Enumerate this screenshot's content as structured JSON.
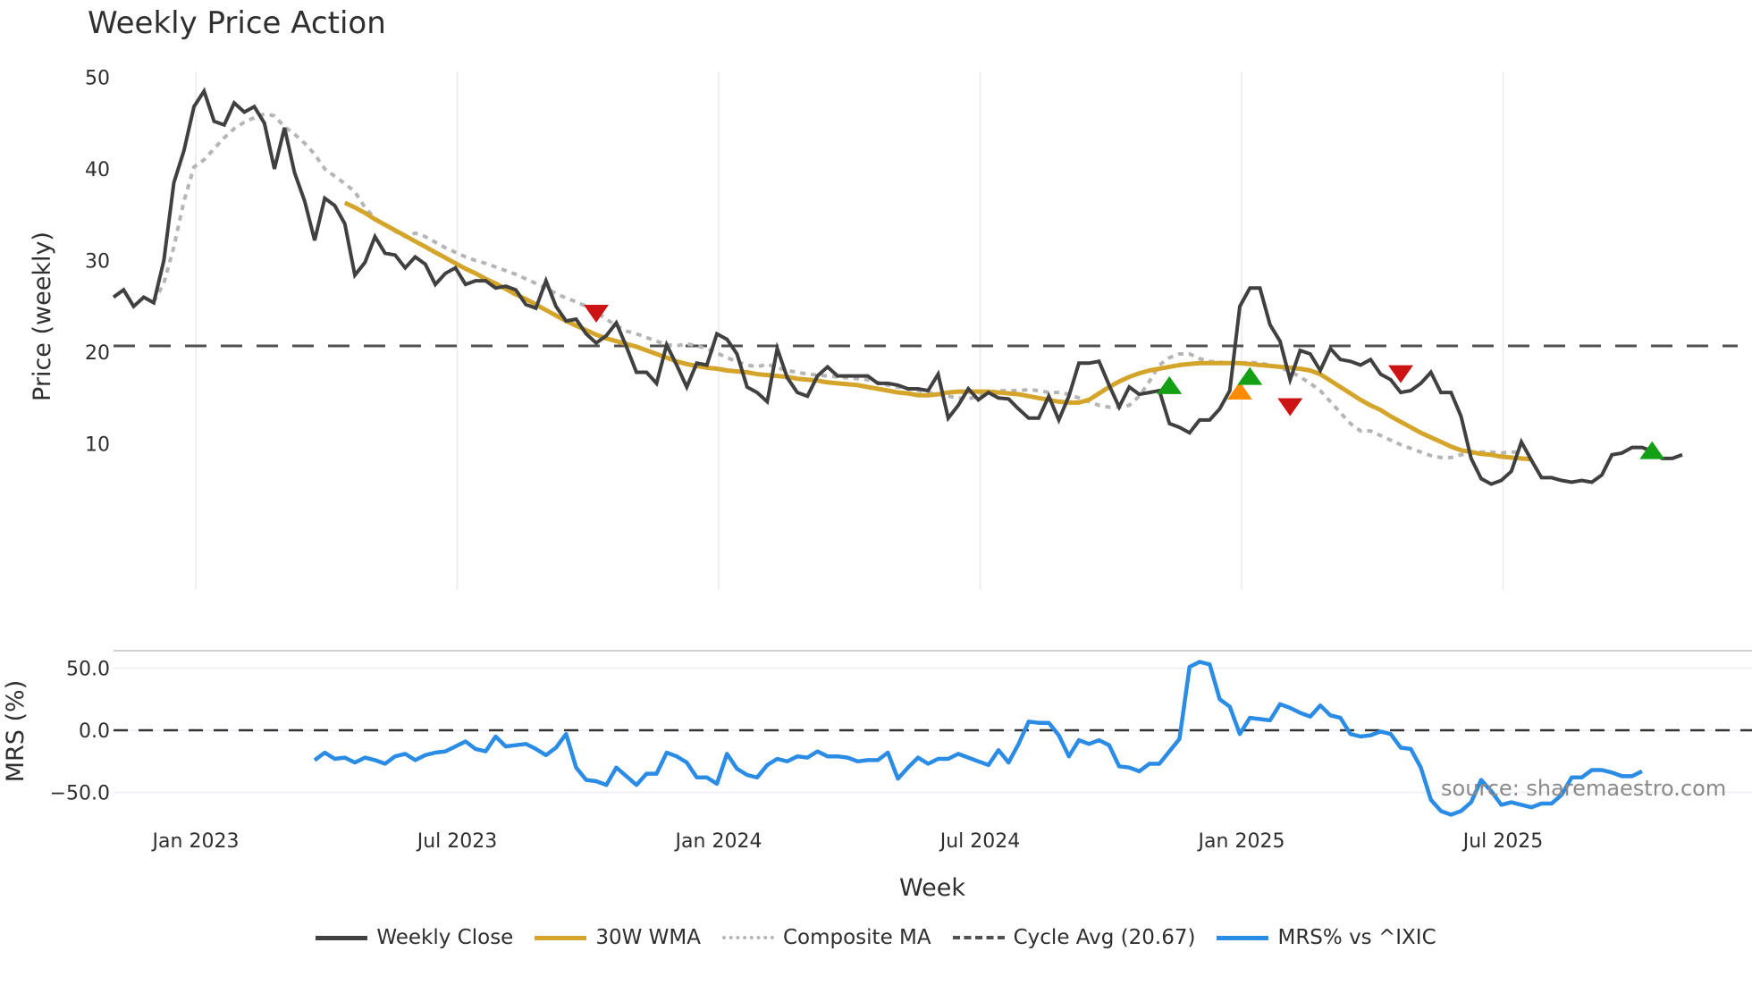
{
  "chart_title": "Weekly Price Action",
  "source_label": "source: sharemaestro.com",
  "colors": {
    "close": "#404040",
    "wma": "#d4a52a",
    "composite": "#b5b5b5",
    "cycle": "#505050",
    "mrs": "#2b8ce6",
    "buy": "#14a014",
    "sell": "#cc1414",
    "caution": "#ff8c00"
  },
  "legend": [
    {
      "label": "Weekly Close",
      "style": "solid",
      "color": "#404040"
    },
    {
      "label": "30W WMA",
      "style": "solid",
      "color": "#d4a52a"
    },
    {
      "label": "Composite MA",
      "style": "dotted",
      "color": "#b5b5b5"
    },
    {
      "label": "Cycle Avg (20.67)",
      "style": "dashed",
      "color": "#505050"
    },
    {
      "label": "MRS% vs ^IXIC",
      "style": "solid",
      "color": "#2b8ce6"
    }
  ],
  "chart_data": [
    {
      "type": "line",
      "title": "Weekly Price Action",
      "xlabel": "Week",
      "ylabel": "Price (weekly)",
      "ylim": [
        3,
        51
      ],
      "yticks": [
        10,
        20,
        30,
        40,
        50
      ],
      "xticks": [
        "Jan 2023",
        "Jul 2023",
        "Jan 2024",
        "Jul 2024",
        "Jan 2025",
        "Jul 2025"
      ],
      "xtick_week_index": [
        8,
        34,
        60,
        86,
        112,
        138
      ],
      "grid": "vertical",
      "cycle_avg": 20.67,
      "series": [
        {
          "name": "Weekly Close",
          "start_index": 0,
          "values": [
            26.0,
            26.8,
            25.0,
            26.0,
            25.4,
            30.0,
            38.5,
            42.0,
            46.8,
            48.5,
            45.2,
            44.8,
            47.2,
            46.2,
            46.8,
            45.0,
            40.0,
            44.5,
            39.6,
            36.5,
            32.2,
            36.8,
            36.0,
            34.0,
            28.4,
            29.8,
            32.6,
            30.8,
            30.6,
            29.2,
            30.4,
            29.6,
            27.4,
            28.6,
            29.2,
            27.4,
            27.8,
            27.8,
            27.0,
            27.2,
            26.8,
            25.2,
            24.8,
            27.8,
            25.0,
            23.4,
            23.6,
            22.0,
            21.0,
            21.8,
            23.2,
            20.6,
            17.8,
            17.8,
            16.6,
            20.8,
            18.6,
            16.2,
            18.8,
            18.6,
            22.0,
            21.4,
            19.8,
            16.2,
            15.6,
            14.6,
            20.4,
            17.2,
            15.6,
            15.2,
            17.4,
            18.4,
            17.4,
            17.4,
            17.4,
            17.4,
            16.6,
            16.6,
            16.4,
            16.0,
            16.0,
            15.8,
            17.6,
            12.8,
            14.2,
            16.0,
            14.8,
            15.6,
            15.0,
            14.9,
            13.8,
            12.8,
            12.8,
            15.2,
            12.6,
            15.2,
            18.8,
            18.8,
            19.0,
            16.4,
            14.0,
            16.2,
            15.4,
            15.6,
            15.8,
            12.2,
            11.8,
            11.2,
            12.6,
            12.6,
            13.8,
            15.8,
            25.0,
            27.0,
            27.0,
            23.0,
            21.2,
            17.0,
            20.2,
            19.8,
            18.0,
            20.4,
            19.2,
            19.0,
            18.6,
            19.2,
            17.6,
            17.0,
            15.6,
            15.8,
            16.6,
            17.8,
            15.6,
            15.6,
            13.0,
            8.4,
            6.2,
            5.6,
            6.0,
            7.0,
            10.2,
            8.2,
            6.3,
            6.3,
            6.0,
            5.8,
            6.0,
            5.8,
            6.6,
            8.8,
            9.0,
            9.6,
            9.6,
            9.2,
            8.4,
            8.4,
            8.8
          ]
        },
        {
          "name": "30W WMA",
          "start_index": 23,
          "values": [
            36.3,
            35.8,
            35.2,
            34.5,
            33.9,
            33.3,
            32.7,
            32.1,
            31.5,
            30.9,
            30.3,
            29.7,
            29.1,
            28.6,
            28.0,
            27.5,
            26.9,
            26.3,
            25.8,
            25.2,
            24.6,
            24.0,
            23.4,
            22.9,
            22.4,
            21.9,
            21.5,
            21.2,
            20.9,
            20.6,
            20.2,
            19.8,
            19.4,
            19.0,
            18.7,
            18.5,
            18.3,
            18.2,
            18.0,
            17.9,
            17.8,
            17.6,
            17.5,
            17.4,
            17.3,
            17.1,
            17.0,
            16.9,
            16.7,
            16.6,
            16.5,
            16.4,
            16.2,
            16.0,
            15.8,
            15.6,
            15.5,
            15.3,
            15.3,
            15.4,
            15.6,
            15.7,
            15.7,
            15.7,
            15.7,
            15.6,
            15.5,
            15.4,
            15.2,
            15.0,
            14.8,
            14.6,
            14.5,
            14.5,
            14.8,
            15.5,
            16.2,
            16.8,
            17.3,
            17.7,
            18.0,
            18.2,
            18.4,
            18.6,
            18.7,
            18.8,
            18.8,
            18.8,
            18.8,
            18.8,
            18.7,
            18.6,
            18.5,
            18.4,
            18.3,
            18.2,
            18.0,
            17.6,
            16.9,
            16.2,
            15.5,
            14.8,
            14.2,
            13.7,
            13.0,
            12.4,
            11.8,
            11.2,
            10.7,
            10.2,
            9.7,
            9.3,
            9.1,
            8.9,
            8.8,
            8.6,
            8.5,
            8.4,
            8.3
          ]
        },
        {
          "name": "Composite MA",
          "start_index": 4,
          "values": [
            25.5,
            27.5,
            31.5,
            36.5,
            40.2,
            41.0,
            42.2,
            43.4,
            44.4,
            45.1,
            45.6,
            46.0,
            45.8,
            44.6,
            43.8,
            42.8,
            41.6,
            40.0,
            39.2,
            38.4,
            37.5,
            35.8,
            34.6,
            33.9,
            33.2,
            32.6,
            33.0,
            32.6,
            32.0,
            31.4,
            30.9,
            30.4,
            30.0,
            29.7,
            29.3,
            28.9,
            28.5,
            28.0,
            27.5,
            27.0,
            26.4,
            25.9,
            25.5,
            25.0,
            24.4,
            23.6,
            22.9,
            22.3,
            22.0,
            21.6,
            21.2,
            20.8,
            20.7,
            20.9,
            20.7,
            20.4,
            19.9,
            19.4,
            19.0,
            18.6,
            18.4,
            18.7,
            18.3,
            18.0,
            17.8,
            17.6,
            17.5,
            17.4,
            17.3,
            17.2,
            17.1,
            17.0,
            16.7,
            16.4,
            16.2,
            16.0,
            15.8,
            15.6,
            15.4,
            15.2,
            15.0,
            14.9,
            15.2,
            15.6,
            15.8,
            15.8,
            15.8,
            15.9,
            15.8,
            15.6,
            15.6,
            15.4,
            15.0,
            14.6,
            14.2,
            14.0,
            14.0,
            14.2,
            15.2,
            16.8,
            18.6,
            19.4,
            19.8,
            19.8,
            19.3,
            19.0,
            18.9,
            18.8,
            18.8,
            18.9,
            18.8,
            18.6,
            18.3,
            17.9,
            17.3,
            16.6,
            15.8,
            14.6,
            13.4,
            12.2,
            11.4,
            11.4,
            10.9,
            10.4,
            9.9,
            9.5,
            9.1,
            8.7,
            8.5,
            8.5,
            8.8,
            9.0,
            9.1,
            9.1,
            9.0,
            9.1,
            9.1
          ]
        },
        {
          "name": "Cycle Avg (20.67)",
          "values": [
            20.67
          ]
        }
      ],
      "signals": [
        {
          "type": "sell",
          "marker": "down-triangle",
          "week_index": 48,
          "value": 24.2
        },
        {
          "type": "buy",
          "marker": "up-triangle",
          "week_index": 105,
          "value": 16.4
        },
        {
          "type": "sell",
          "marker": "down-triangle",
          "week_index": 117,
          "value": 14.0
        },
        {
          "type": "caution",
          "marker": "up-triangle",
          "week_index": 112,
          "value": 15.8
        },
        {
          "type": "buy",
          "marker": "up-triangle",
          "week_index": 113,
          "value": 17.4
        },
        {
          "type": "sell",
          "marker": "down-triangle",
          "week_index": 128,
          "value": 17.6
        },
        {
          "type": "buy",
          "marker": "up-triangle",
          "week_index": 153,
          "value": 9.3
        }
      ]
    },
    {
      "type": "line",
      "title": "",
      "ylabel": "MRS (%)",
      "ylim": [
        -80,
        65
      ],
      "yticks": [
        50.0,
        0.0,
        -50.0
      ],
      "ytick_labels": [
        "50.0",
        "0.0",
        "−50.0"
      ],
      "zero_line": "dashed",
      "series": [
        {
          "name": "MRS% vs ^IXIC",
          "start_index": 20,
          "values": [
            -24,
            -18,
            -23,
            -22,
            -26,
            -22,
            -24,
            -27,
            -21,
            -19,
            -24,
            -20,
            -18,
            -17,
            -13,
            -9,
            -15,
            -17,
            -5,
            -13,
            -12,
            -11,
            -15,
            -20,
            -14,
            -3,
            -30,
            -40,
            -41,
            -44,
            -30,
            -37,
            -44,
            -35,
            -35,
            -18,
            -21,
            -26,
            -38,
            -38,
            -43,
            -19,
            -31,
            -36,
            -38,
            -28,
            -23,
            -25,
            -21,
            -22,
            -17,
            -21,
            -21,
            -22,
            -25,
            -24,
            -24,
            -18,
            -39,
            -30,
            -22,
            -27,
            -23,
            -23,
            -19,
            -22,
            -25,
            -28,
            -16,
            -26,
            -11,
            7,
            6,
            6,
            -4,
            -21,
            -8,
            -11,
            -8,
            -12,
            -29,
            -30,
            -33,
            -27,
            -27,
            -17,
            -7,
            51,
            55,
            53,
            25,
            19,
            -3,
            10,
            9,
            8,
            21,
            18,
            14,
            11,
            20,
            12,
            10,
            -3,
            -5,
            -4,
            -1,
            -3,
            -14,
            -15,
            -30,
            -56,
            -65,
            -68,
            -65,
            -58,
            -40,
            -49,
            -60,
            -58,
            -60,
            -62,
            -59,
            -59,
            -52,
            -38,
            -38,
            -32,
            -32,
            -34,
            -37,
            -37,
            -33
          ]
        }
      ]
    }
  ]
}
